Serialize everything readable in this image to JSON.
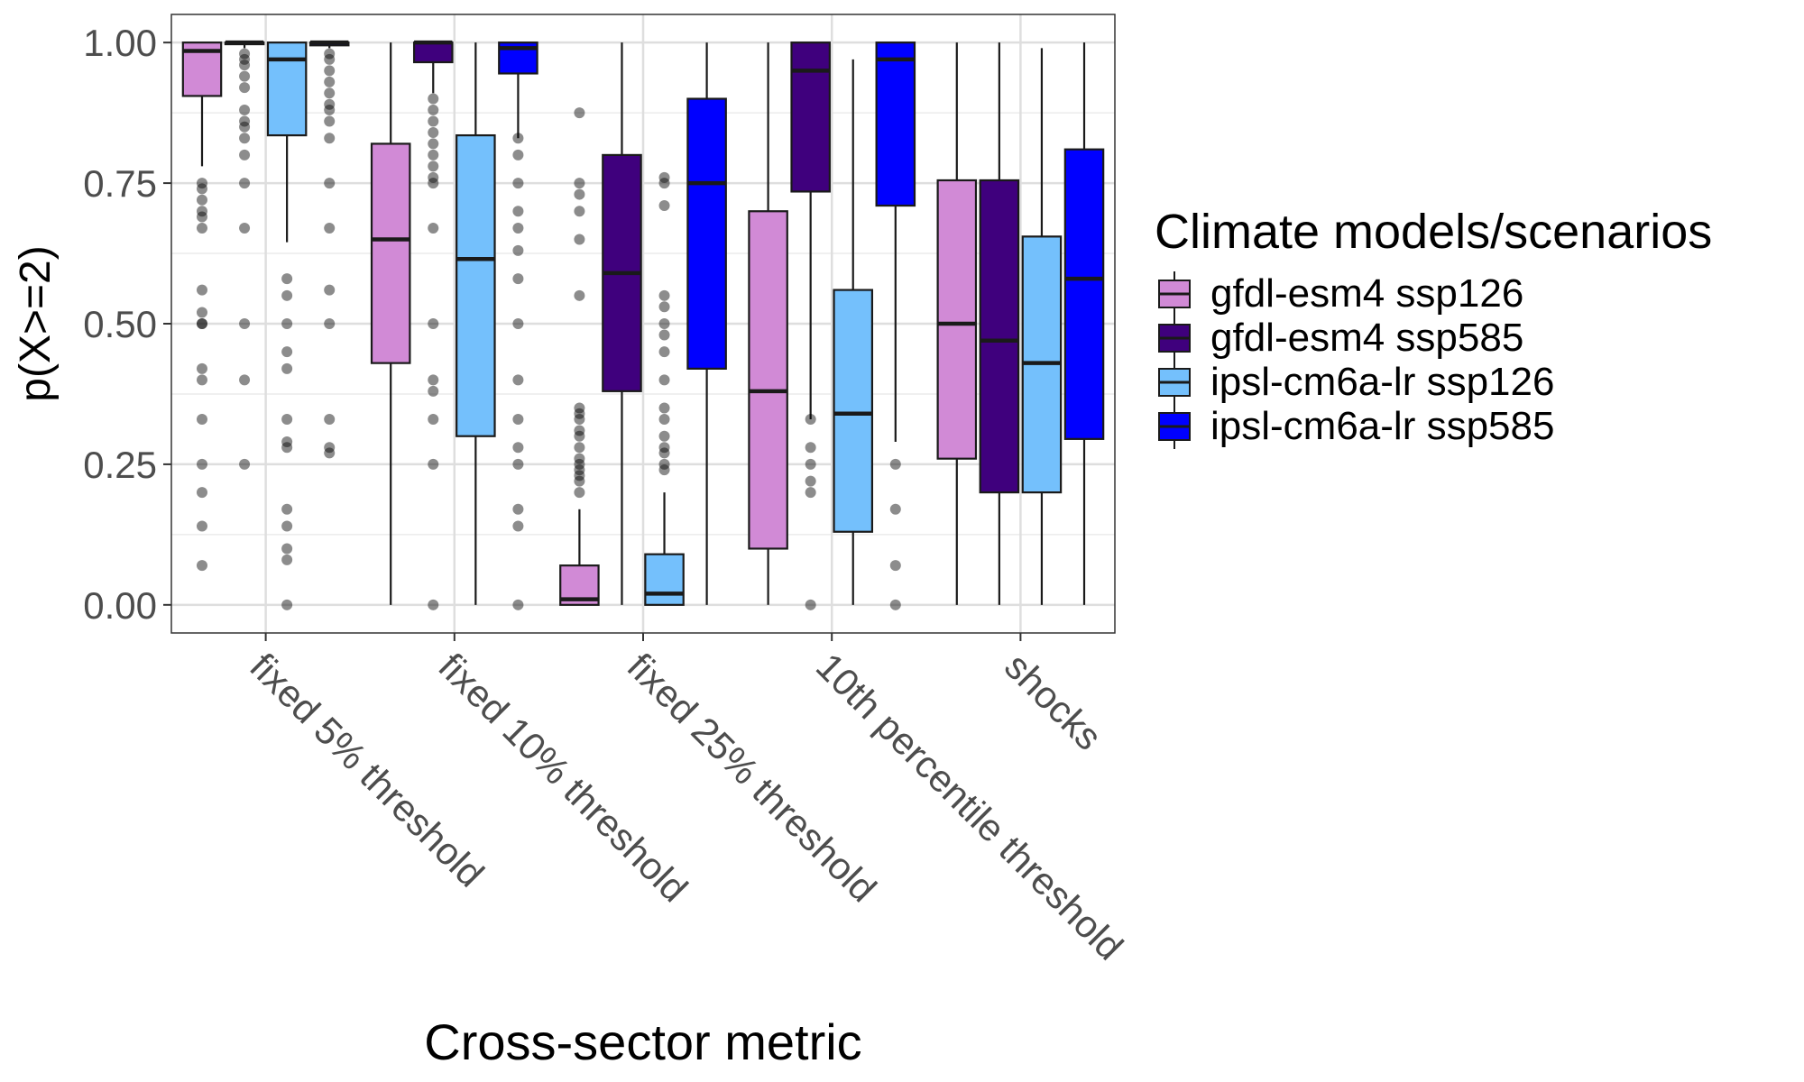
{
  "chart_data": {
    "type": "boxplot",
    "xlabel": "Cross-sector metric",
    "ylabel": "p(X>=2)",
    "ylim": [
      -0.05,
      1.05
    ],
    "yticks": [
      0,
      0.25,
      0.5,
      0.75,
      1.0
    ],
    "ytick_labels": [
      "0.00",
      "0.25",
      "0.50",
      "0.75",
      "1.00"
    ],
    "grid": true,
    "legend": {
      "title": "Climate models/scenarios",
      "position": "right"
    },
    "categories": [
      "fixed 5% threshold",
      "fixed 10% threshold",
      "fixed 25% threshold",
      "10th percentile threshold",
      "shocks"
    ],
    "series": [
      {
        "name": "gfdl-esm4 ssp126",
        "color": "#d18ad6",
        "boxes": [
          {
            "whislo": 0.78,
            "q1": 0.905,
            "med": 0.985,
            "q3": 1.0,
            "whishi": 1.0,
            "outliers": [
              0.75,
              0.74,
              0.72,
              0.7,
              0.69,
              0.67,
              0.56,
              0.52,
              0.5,
              0.5,
              0.42,
              0.4,
              0.33,
              0.25,
              0.2,
              0.14,
              0.07
            ]
          },
          {
            "whislo": 0.0,
            "q1": 0.43,
            "med": 0.65,
            "q3": 0.82,
            "whishi": 1.0,
            "outliers": []
          },
          {
            "whislo": 0.0,
            "q1": 0.0,
            "med": 0.01,
            "q3": 0.07,
            "whishi": 0.17,
            "outliers": [
              0.875,
              0.75,
              0.73,
              0.7,
              0.65,
              0.55,
              0.35,
              0.34,
              0.33,
              0.31,
              0.3,
              0.28,
              0.26,
              0.25,
              0.24,
              0.23,
              0.22,
              0.2
            ]
          },
          {
            "whislo": 0.0,
            "q1": 0.1,
            "med": 0.38,
            "q3": 0.7,
            "whishi": 1.0,
            "outliers": []
          },
          {
            "whislo": 0.0,
            "q1": 0.26,
            "med": 0.5,
            "q3": 0.755,
            "whishi": 1.0,
            "outliers": []
          }
        ]
      },
      {
        "name": "gfdl-esm4 ssp585",
        "color": "#3f007d",
        "boxes": [
          {
            "whislo": 0.99,
            "q1": 0.997,
            "med": 1.0,
            "q3": 1.0,
            "whishi": 1.0,
            "outliers": [
              0.98,
              0.97,
              0.96,
              0.94,
              0.92,
              0.88,
              0.86,
              0.85,
              0.83,
              0.8,
              0.75,
              0.67,
              0.5,
              0.4,
              0.25
            ]
          },
          {
            "whislo": 0.91,
            "q1": 0.965,
            "med": 1.0,
            "q3": 1.0,
            "whishi": 1.0,
            "outliers": [
              0.9,
              0.88,
              0.86,
              0.84,
              0.82,
              0.8,
              0.78,
              0.76,
              0.75,
              0.67,
              0.5,
              0.4,
              0.38,
              0.33,
              0.25,
              0.0
            ]
          },
          {
            "whislo": 0.0,
            "q1": 0.38,
            "med": 0.59,
            "q3": 0.8,
            "whishi": 1.0,
            "outliers": []
          },
          {
            "whislo": 0.33,
            "q1": 0.735,
            "med": 0.95,
            "q3": 1.0,
            "whishi": 1.0,
            "outliers": [
              0.33,
              0.28,
              0.25,
              0.22,
              0.2,
              0.0
            ]
          },
          {
            "whislo": 0.0,
            "q1": 0.2,
            "med": 0.47,
            "q3": 0.755,
            "whishi": 1.0,
            "outliers": []
          }
        ]
      },
      {
        "name": "ipsl-cm6a-lr ssp126",
        "color": "#74c0fc",
        "boxes": [
          {
            "whislo": 0.645,
            "q1": 0.835,
            "med": 0.97,
            "q3": 1.0,
            "whishi": 1.0,
            "outliers": [
              0.58,
              0.55,
              0.5,
              0.45,
              0.42,
              0.33,
              0.29,
              0.28,
              0.17,
              0.14,
              0.1,
              0.08,
              0.0
            ]
          },
          {
            "whislo": 0.0,
            "q1": 0.3,
            "med": 0.615,
            "q3": 0.835,
            "whishi": 1.0,
            "outliers": []
          },
          {
            "whislo": 0.0,
            "q1": 0.0,
            "med": 0.02,
            "q3": 0.09,
            "whishi": 0.2,
            "outliers": [
              0.76,
              0.75,
              0.71,
              0.55,
              0.53,
              0.5,
              0.48,
              0.45,
              0.4,
              0.35,
              0.33,
              0.3,
              0.28,
              0.27,
              0.25,
              0.24
            ]
          },
          {
            "whislo": 0.0,
            "q1": 0.13,
            "med": 0.34,
            "q3": 0.56,
            "whishi": 0.97,
            "outliers": []
          },
          {
            "whislo": 0.0,
            "q1": 0.2,
            "med": 0.43,
            "q3": 0.655,
            "whishi": 0.99,
            "outliers": []
          }
        ]
      },
      {
        "name": "ipsl-cm6a-lr ssp585",
        "color": "#0000ff",
        "boxes": [
          {
            "whislo": 0.99,
            "q1": 0.995,
            "med": 1.0,
            "q3": 1.0,
            "whishi": 1.0,
            "outliers": [
              0.98,
              0.97,
              0.95,
              0.93,
              0.91,
              0.89,
              0.88,
              0.86,
              0.83,
              0.75,
              0.67,
              0.56,
              0.5,
              0.33,
              0.28,
              0.27
            ]
          },
          {
            "whislo": 0.83,
            "q1": 0.945,
            "med": 0.99,
            "q3": 1.0,
            "whishi": 1.0,
            "outliers": [
              0.83,
              0.8,
              0.75,
              0.7,
              0.67,
              0.63,
              0.58,
              0.5,
              0.4,
              0.33,
              0.28,
              0.25,
              0.17,
              0.14,
              0.0
            ]
          },
          {
            "whislo": 0.0,
            "q1": 0.42,
            "med": 0.75,
            "q3": 0.9,
            "whishi": 1.0,
            "outliers": []
          },
          {
            "whislo": 0.29,
            "q1": 0.71,
            "med": 0.97,
            "q3": 1.0,
            "whishi": 1.0,
            "outliers": [
              0.25,
              0.17,
              0.07,
              0.0
            ]
          },
          {
            "whislo": 0.0,
            "q1": 0.295,
            "med": 0.58,
            "q3": 0.81,
            "whishi": 1.0,
            "outliers": []
          }
        ]
      }
    ]
  }
}
